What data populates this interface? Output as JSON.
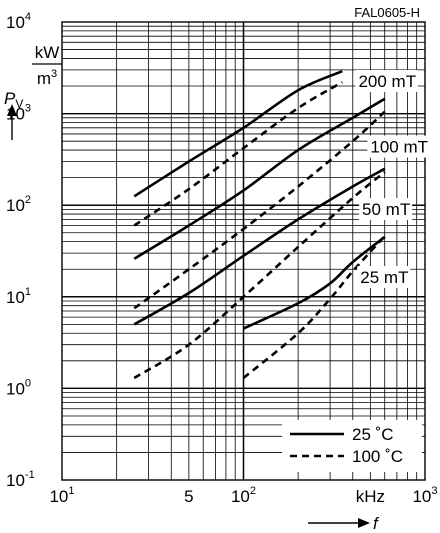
{
  "figure_id": "FAL0605-H",
  "chart_data": {
    "type": "line",
    "x_scale": "log",
    "y_scale": "log",
    "xlim": [
      10,
      1000
    ],
    "ylim": [
      0.1,
      10000
    ],
    "x_ticks": [
      {
        "value": 10,
        "base": "10",
        "exp": "1"
      },
      {
        "value": 50,
        "base": "5",
        "exp": ""
      },
      {
        "value": 100,
        "base": "10",
        "exp": "2"
      },
      {
        "value": 1000,
        "base": "10",
        "exp": "3"
      }
    ],
    "x_unit_label": "kHz",
    "x_unit_value": 500,
    "y_ticks": [
      {
        "value": 0.1,
        "base": "10",
        "exp": "-1"
      },
      {
        "value": 1,
        "base": "10",
        "exp": "0"
      },
      {
        "value": 10,
        "base": "10",
        "exp": "1"
      },
      {
        "value": 100,
        "base": "10",
        "exp": "2"
      },
      {
        "value": 1000,
        "base": "10",
        "exp": "3"
      },
      {
        "value": 10000,
        "base": "10",
        "exp": "4"
      }
    ],
    "y_unit_num": "kW",
    "y_unit_den_base": "m",
    "y_unit_den_exp": "3",
    "ylabel_main": "P",
    "ylabel_sub": "V",
    "xlabel": "f",
    "legend": [
      {
        "label": "25 ˚C",
        "style": "solid"
      },
      {
        "label": "100 ˚C",
        "style": "dashed"
      }
    ],
    "curve_labels": [
      {
        "text": "200 mT",
        "x": 430,
        "y": 2000
      },
      {
        "text": "100 mT",
        "x": 500,
        "y": 385
      },
      {
        "text": "50 mT",
        "x": 450,
        "y": 80
      },
      {
        "text": "25 mT",
        "x": 440,
        "y": 14.5
      }
    ],
    "series": [
      {
        "name": "200 mT, 25 ˚C",
        "style": "solid",
        "points": [
          [
            25,
            125
          ],
          [
            50,
            300
          ],
          [
            100,
            700
          ],
          [
            200,
            1800
          ],
          [
            350,
            2900
          ]
        ]
      },
      {
        "name": "200 mT, 100 ˚C",
        "style": "dashed",
        "points": [
          [
            25,
            60
          ],
          [
            50,
            150
          ],
          [
            100,
            420
          ],
          [
            200,
            1150
          ],
          [
            350,
            2200
          ]
        ]
      },
      {
        "name": "100 mT, 25 ˚C",
        "style": "solid",
        "points": [
          [
            25,
            26
          ],
          [
            50,
            60
          ],
          [
            100,
            145
          ],
          [
            200,
            400
          ],
          [
            400,
            900
          ],
          [
            600,
            1450
          ]
        ]
      },
      {
        "name": "100 mT, 100 ˚C",
        "style": "dashed",
        "points": [
          [
            25,
            7.5
          ],
          [
            50,
            20
          ],
          [
            100,
            55
          ],
          [
            200,
            160
          ],
          [
            400,
            500
          ],
          [
            600,
            1050
          ]
        ]
      },
      {
        "name": "50 mT, 25 ˚C",
        "style": "solid",
        "points": [
          [
            25,
            5
          ],
          [
            50,
            11
          ],
          [
            100,
            28
          ],
          [
            200,
            70
          ],
          [
            400,
            160
          ],
          [
            600,
            250
          ]
        ]
      },
      {
        "name": "50 mT, 100 ˚C",
        "style": "dashed",
        "points": [
          [
            25,
            1.3
          ],
          [
            50,
            3
          ],
          [
            100,
            10
          ],
          [
            200,
            35
          ],
          [
            400,
            120
          ],
          [
            600,
            230
          ]
        ]
      },
      {
        "name": "25 mT, 25 ˚C",
        "style": "solid",
        "points": [
          [
            100,
            4.5
          ],
          [
            200,
            8.5
          ],
          [
            300,
            14
          ],
          [
            400,
            24
          ],
          [
            600,
            45
          ]
        ]
      },
      {
        "name": "25 mT, 100 ˚C",
        "style": "dashed",
        "points": [
          [
            100,
            1.3
          ],
          [
            200,
            4
          ],
          [
            300,
            9.5
          ],
          [
            400,
            19
          ],
          [
            600,
            46
          ]
        ]
      }
    ]
  }
}
